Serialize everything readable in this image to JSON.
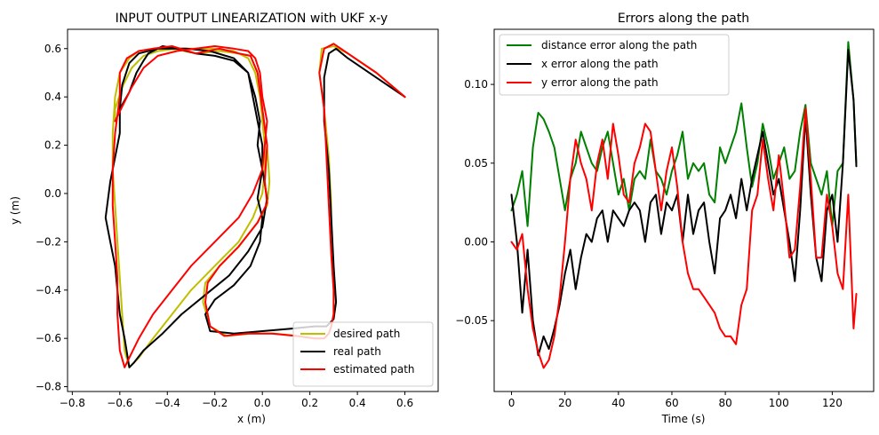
{
  "chart_data": [
    {
      "type": "line",
      "title": "INPUT OUTPUT LINEARIZATION with UKF x-y",
      "xlabel": "x (m)",
      "ylabel": "y (m)",
      "xlim": [
        -0.82,
        0.74
      ],
      "ylim": [
        -0.82,
        0.68
      ],
      "xticks": [
        -0.8,
        -0.6,
        -0.4,
        -0.2,
        0.0,
        0.2,
        0.4,
        0.6
      ],
      "xtick_labels": [
        "−0.8",
        "−0.6",
        "−0.4",
        "−0.2",
        "0.0",
        "0.2",
        "0.4",
        "0.6"
      ],
      "yticks": [
        -0.8,
        -0.6,
        -0.4,
        -0.2,
        0.0,
        0.2,
        0.4,
        0.6
      ],
      "ytick_labels": [
        "−0.8",
        "−0.6",
        "−0.4",
        "−0.2",
        "0.0",
        "0.2",
        "0.4",
        "0.6"
      ],
      "grid": false,
      "legend_position": "lower-right",
      "series": [
        {
          "name": "desired path",
          "color": "#bfbf00",
          "x": [
            0.6,
            0.48,
            0.36,
            0.3,
            0.25,
            0.24,
            0.26,
            0.28,
            0.29,
            0.29,
            0.3,
            0.3,
            0.29,
            0.28,
            0.26,
            0.22,
            0.15,
            0.05,
            -0.05,
            -0.15,
            -0.22,
            -0.25,
            -0.24,
            -0.18,
            -0.1,
            -0.02,
            0.02,
            0.03,
            0.02,
            0.0,
            -0.02,
            -0.05,
            -0.1,
            -0.18,
            -0.28,
            -0.38,
            -0.46,
            -0.52,
            -0.56,
            -0.6,
            -0.62,
            -0.63,
            -0.63,
            -0.62,
            -0.61,
            -0.6,
            -0.59,
            -0.58,
            -0.56,
            -0.52,
            -0.46,
            -0.38,
            -0.3,
            -0.2,
            -0.1,
            -0.04,
            0.0,
            0.01,
            0.01,
            0.0,
            -0.01,
            -0.03,
            -0.06,
            -0.12,
            -0.2,
            -0.28,
            -0.36,
            -0.44,
            -0.5,
            -0.55,
            -0.59,
            -0.62,
            -0.62
          ],
          "y": [
            0.4,
            0.5,
            0.58,
            0.61,
            0.6,
            0.5,
            0.35,
            0.15,
            -0.05,
            -0.25,
            -0.4,
            -0.5,
            -0.55,
            -0.58,
            -0.6,
            -0.6,
            -0.59,
            -0.58,
            -0.58,
            -0.59,
            -0.55,
            -0.45,
            -0.37,
            -0.3,
            -0.22,
            -0.12,
            -0.05,
            0.05,
            0.2,
            0.35,
            0.5,
            0.57,
            0.58,
            0.59,
            0.58,
            0.6,
            0.6,
            0.59,
            0.56,
            0.5,
            0.4,
            0.25,
            0.1,
            -0.05,
            -0.2,
            -0.35,
            -0.5,
            -0.65,
            -0.72,
            -0.68,
            -0.6,
            -0.5,
            -0.4,
            -0.3,
            -0.2,
            -0.1,
            0.0,
            0.1,
            0.2,
            0.3,
            0.4,
            0.5,
            0.56,
            0.59,
            0.6,
            0.6,
            0.6,
            0.59,
            0.57,
            0.52,
            0.44,
            0.35,
            0.3
          ]
        },
        {
          "name": "real path",
          "color": "#000000",
          "x": [
            0.6,
            0.48,
            0.36,
            0.31,
            0.28,
            0.26,
            0.26,
            0.28,
            0.29,
            0.3,
            0.31,
            0.3,
            0.27,
            0.22,
            0.12,
            0.0,
            -0.12,
            -0.22,
            -0.24,
            -0.2,
            -0.12,
            -0.05,
            -0.01,
            0.0,
            -0.02,
            0.0,
            0.0,
            -0.02,
            -0.04,
            -0.06,
            -0.12,
            -0.2,
            -0.28,
            -0.36,
            -0.42,
            -0.48,
            -0.5,
            -0.53,
            -0.56,
            -0.6,
            -0.6,
            -0.62,
            -0.64,
            -0.66,
            -0.64,
            -0.62,
            -0.61,
            -0.6,
            -0.58,
            -0.56,
            -0.54,
            -0.5,
            -0.42,
            -0.34,
            -0.24,
            -0.14,
            -0.06,
            0.0,
            0.02,
            0.0,
            -0.02,
            -0.01,
            -0.03,
            -0.06,
            -0.12,
            -0.22,
            -0.32,
            -0.44,
            -0.52,
            -0.56,
            -0.59,
            -0.6
          ],
          "y": [
            0.4,
            0.48,
            0.56,
            0.6,
            0.58,
            0.48,
            0.3,
            0.1,
            -0.1,
            -0.3,
            -0.45,
            -0.52,
            -0.55,
            -0.55,
            -0.56,
            -0.57,
            -0.58,
            -0.57,
            -0.5,
            -0.44,
            -0.38,
            -0.3,
            -0.2,
            -0.1,
            -0.02,
            0.1,
            0.2,
            0.3,
            0.4,
            0.5,
            0.55,
            0.57,
            0.58,
            0.6,
            0.61,
            0.58,
            0.55,
            0.5,
            0.42,
            0.35,
            0.25,
            0.15,
            0.05,
            -0.1,
            -0.2,
            -0.3,
            -0.4,
            -0.5,
            -0.6,
            -0.72,
            -0.7,
            -0.65,
            -0.58,
            -0.5,
            -0.42,
            -0.34,
            -0.24,
            -0.14,
            -0.02,
            0.1,
            0.2,
            0.3,
            0.4,
            0.5,
            0.56,
            0.59,
            0.6,
            0.6,
            0.58,
            0.54,
            0.45,
            0.35
          ]
        },
        {
          "name": "estimated path",
          "color": "#ff0000",
          "x": [
            0.6,
            0.48,
            0.36,
            0.3,
            0.26,
            0.24,
            0.26,
            0.27,
            0.28,
            0.29,
            0.3,
            0.3,
            0.29,
            0.28,
            0.26,
            0.22,
            0.14,
            0.04,
            -0.06,
            -0.16,
            -0.22,
            -0.24,
            -0.23,
            -0.18,
            -0.1,
            -0.02,
            0.02,
            0.01,
            0.02,
            0.0,
            -0.02,
            -0.05,
            -0.1,
            -0.18,
            -0.28,
            -0.38,
            -0.46,
            -0.52,
            -0.57,
            -0.6,
            -0.6,
            -0.62,
            -0.63,
            -0.63,
            -0.62,
            -0.61,
            -0.61,
            -0.6,
            -0.58,
            -0.56,
            -0.52,
            -0.46,
            -0.38,
            -0.3,
            -0.2,
            -0.1,
            -0.04,
            0.0,
            0.01,
            0.02,
            0.0,
            -0.01,
            -0.03,
            -0.06,
            -0.12,
            -0.2,
            -0.28,
            -0.36,
            -0.44,
            -0.5,
            -0.55,
            -0.59,
            -0.62
          ],
          "y": [
            0.4,
            0.5,
            0.58,
            0.62,
            0.6,
            0.5,
            0.35,
            0.15,
            -0.05,
            -0.25,
            -0.4,
            -0.5,
            -0.55,
            -0.58,
            -0.6,
            -0.6,
            -0.59,
            -0.58,
            -0.58,
            -0.59,
            -0.55,
            -0.45,
            -0.37,
            -0.3,
            -0.22,
            -0.12,
            -0.04,
            0.05,
            0.2,
            0.35,
            0.5,
            0.57,
            0.58,
            0.6,
            0.58,
            0.61,
            0.6,
            0.59,
            0.56,
            0.5,
            0.4,
            0.25,
            0.1,
            -0.05,
            -0.2,
            -0.35,
            -0.5,
            -0.65,
            -0.72,
            -0.68,
            -0.6,
            -0.5,
            -0.4,
            -0.3,
            -0.2,
            -0.1,
            0.0,
            0.1,
            0.2,
            0.3,
            0.4,
            0.5,
            0.56,
            0.59,
            0.6,
            0.61,
            0.6,
            0.59,
            0.57,
            0.52,
            0.44,
            0.36,
            0.3
          ]
        }
      ]
    },
    {
      "type": "line",
      "title": "Errors along the path",
      "xlabel": "Time (s)",
      "ylabel": "",
      "xlim": [
        -6.5,
        135.5
      ],
      "ylim": [
        -0.095,
        0.135
      ],
      "xticks": [
        0,
        20,
        40,
        60,
        80,
        100,
        120
      ],
      "xtick_labels": [
        "0",
        "20",
        "40",
        "60",
        "80",
        "100",
        "120"
      ],
      "yticks": [
        -0.05,
        0.0,
        0.05,
        0.1
      ],
      "ytick_labels": [
        "−0.05",
        "0.00",
        "0.05",
        "0.10"
      ],
      "grid": false,
      "legend_position": "upper-left",
      "series": [
        {
          "name": "distance error along the path",
          "color": "#008000",
          "x": [
            0,
            2,
            4,
            6,
            8,
            10,
            12,
            14,
            16,
            18,
            20,
            22,
            24,
            26,
            28,
            30,
            32,
            34,
            36,
            38,
            40,
            42,
            44,
            46,
            48,
            50,
            52,
            54,
            56,
            58,
            60,
            62,
            64,
            66,
            68,
            70,
            72,
            74,
            76,
            78,
            80,
            82,
            84,
            86,
            88,
            90,
            92,
            94,
            96,
            98,
            100,
            102,
            104,
            106,
            108,
            110,
            112,
            114,
            116,
            118,
            120,
            122,
            124,
            126,
            128,
            129
          ],
          "y": [
            0.02,
            0.03,
            0.045,
            0.01,
            0.06,
            0.082,
            0.078,
            0.07,
            0.06,
            0.04,
            0.02,
            0.04,
            0.05,
            0.07,
            0.06,
            0.05,
            0.045,
            0.06,
            0.07,
            0.05,
            0.03,
            0.04,
            0.02,
            0.04,
            0.045,
            0.04,
            0.065,
            0.045,
            0.04,
            0.03,
            0.045,
            0.055,
            0.07,
            0.04,
            0.05,
            0.045,
            0.05,
            0.03,
            0.025,
            0.06,
            0.05,
            0.06,
            0.07,
            0.088,
            0.06,
            0.035,
            0.05,
            0.075,
            0.06,
            0.04,
            0.05,
            0.06,
            0.04,
            0.045,
            0.07,
            0.087,
            0.05,
            0.04,
            0.03,
            0.045,
            0.01,
            0.045,
            0.05,
            0.127,
            0.09,
            0.05
          ]
        },
        {
          "name": "x error along the path",
          "color": "#000000",
          "x": [
            0,
            2,
            4,
            6,
            8,
            10,
            12,
            14,
            16,
            18,
            20,
            22,
            24,
            26,
            28,
            30,
            32,
            34,
            36,
            38,
            40,
            42,
            44,
            46,
            48,
            50,
            52,
            54,
            56,
            58,
            60,
            62,
            64,
            66,
            68,
            70,
            72,
            74,
            76,
            78,
            80,
            82,
            84,
            86,
            88,
            90,
            92,
            94,
            96,
            98,
            100,
            102,
            104,
            106,
            108,
            110,
            112,
            114,
            116,
            118,
            120,
            122,
            124,
            126,
            128,
            129
          ],
          "y": [
            0.03,
            0.0,
            -0.045,
            -0.005,
            -0.05,
            -0.072,
            -0.06,
            -0.068,
            -0.055,
            -0.04,
            -0.02,
            -0.005,
            -0.03,
            -0.01,
            0.005,
            0.0,
            0.015,
            0.02,
            0.0,
            0.02,
            0.015,
            0.01,
            0.02,
            0.025,
            0.02,
            0.0,
            0.025,
            0.03,
            0.005,
            0.025,
            0.02,
            0.03,
            0.0,
            0.03,
            0.005,
            0.02,
            0.025,
            0.0,
            -0.02,
            0.015,
            0.02,
            0.03,
            0.015,
            0.04,
            0.02,
            0.04,
            0.055,
            0.07,
            0.05,
            0.03,
            0.04,
            0.02,
            0.0,
            -0.025,
            0.02,
            0.08,
            0.03,
            -0.01,
            -0.025,
            0.02,
            0.03,
            0.0,
            0.05,
            0.122,
            0.09,
            0.048
          ]
        },
        {
          "name": "y error along the path",
          "color": "#ff0000",
          "x": [
            0,
            2,
            4,
            6,
            8,
            10,
            12,
            14,
            16,
            18,
            20,
            22,
            24,
            26,
            28,
            30,
            32,
            34,
            36,
            38,
            40,
            42,
            44,
            46,
            48,
            50,
            52,
            54,
            56,
            58,
            60,
            62,
            64,
            66,
            68,
            70,
            72,
            74,
            76,
            78,
            80,
            82,
            84,
            86,
            88,
            90,
            92,
            94,
            96,
            98,
            100,
            102,
            104,
            106,
            108,
            110,
            112,
            114,
            116,
            118,
            120,
            122,
            124,
            126,
            128,
            129
          ],
          "y": [
            0.0,
            -0.005,
            0.005,
            -0.03,
            -0.055,
            -0.07,
            -0.08,
            -0.075,
            -0.06,
            -0.035,
            0.0,
            0.04,
            0.065,
            0.05,
            0.04,
            0.02,
            0.05,
            0.065,
            0.04,
            0.075,
            0.055,
            0.03,
            0.025,
            0.05,
            0.06,
            0.075,
            0.07,
            0.045,
            0.02,
            0.045,
            0.06,
            0.035,
            0.0,
            -0.02,
            -0.03,
            -0.03,
            -0.035,
            -0.04,
            -0.045,
            -0.055,
            -0.06,
            -0.06,
            -0.065,
            -0.04,
            -0.03,
            0.02,
            0.03,
            0.065,
            0.04,
            0.02,
            0.055,
            0.025,
            -0.01,
            -0.005,
            0.035,
            0.085,
            0.04,
            -0.01,
            -0.01,
            0.03,
            0.01,
            -0.02,
            -0.03,
            0.03,
            -0.055,
            -0.033
          ]
        }
      ]
    }
  ]
}
